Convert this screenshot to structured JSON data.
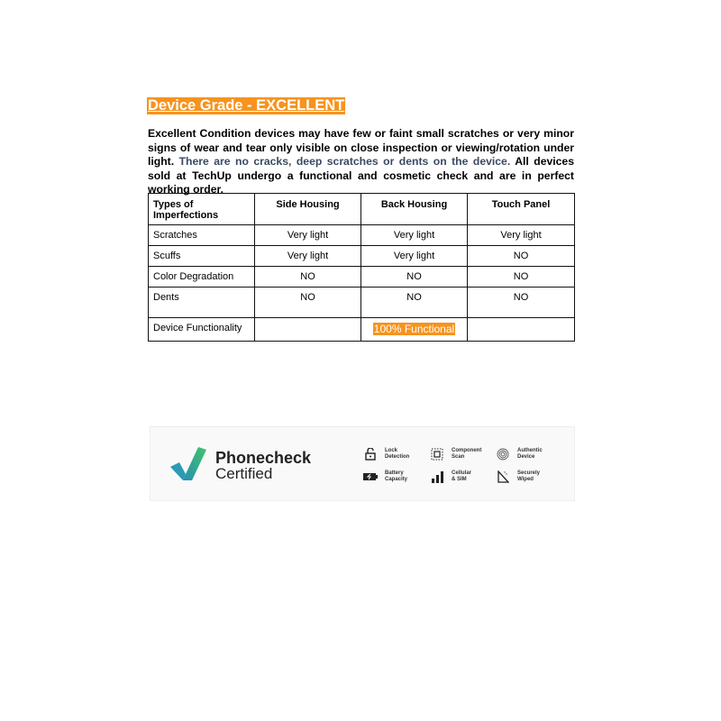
{
  "title": "Device Grade - EXCELLENT",
  "description": {
    "part1": "Excellent Condition devices may have few or faint small scratches or very minor signs of wear and tear only visible on close inspection or viewing/rotation under light.",
    "part2": " There are no cracks, deep scratches or dents on the device.",
    "part3": " All devices sold at TechUp undergo a functional and cosmetic check and are in perfect working order."
  },
  "table": {
    "headers": [
      "Types of Imperfections",
      "Side Housing",
      "Back Housing",
      "Touch Panel"
    ],
    "rows": [
      [
        "Scratches",
        "Very light",
        "Very light",
        "Very light"
      ],
      [
        "Scuffs",
        "Very light",
        "Very light",
        "NO"
      ],
      [
        "Color Degradation",
        "NO",
        "NO",
        "NO"
      ],
      [
        "Dents",
        "NO",
        "NO",
        "NO"
      ]
    ],
    "functionality": {
      "label": "Device Functionality",
      "value": "100% Functional"
    }
  },
  "certificate": {
    "brand": "Phonecheck",
    "subtitle": "Certified",
    "features": [
      {
        "line1": "Lock",
        "line2": "Detection",
        "icon": "lock-icon"
      },
      {
        "line1": "Component",
        "line2": "Scan",
        "icon": "chip-icon"
      },
      {
        "line1": "Authentic",
        "line2": "Device",
        "icon": "fingerprint-icon"
      },
      {
        "line1": "Battery",
        "line2": "Capacity",
        "icon": "battery-icon"
      },
      {
        "line1": "Cellular",
        "line2": "& SIM",
        "icon": "signal-icon"
      },
      {
        "line1": "Securely",
        "line2": "Wiped",
        "icon": "wipe-icon"
      }
    ]
  },
  "colors": {
    "accent": "#f7931e"
  }
}
